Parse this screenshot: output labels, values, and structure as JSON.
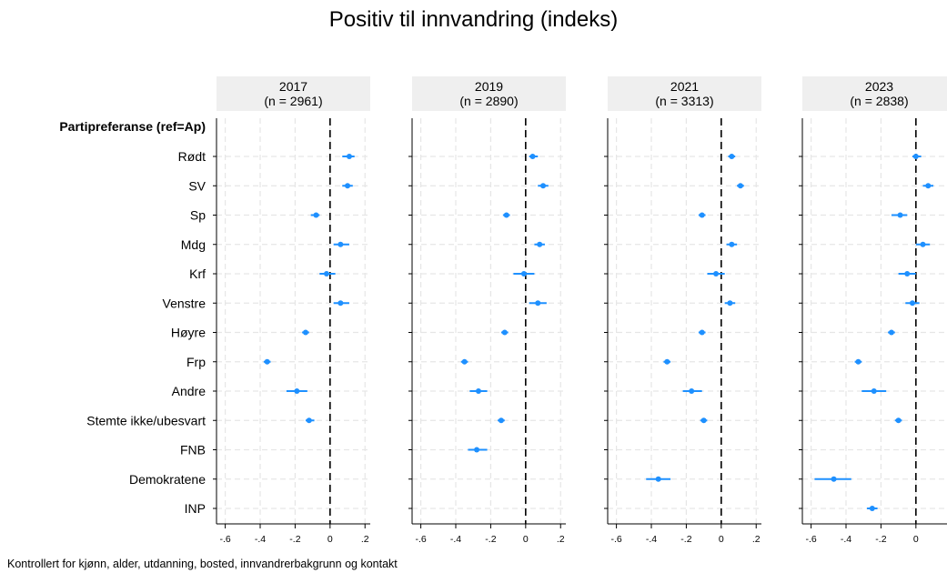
{
  "chart_data": {
    "type": "scatter",
    "title": "Positiv til innvandring (indeks)",
    "footnote": "Kontrollert for kjønn, alder, utdanning, bosted, innvandrerbakgrunn og kontakt",
    "group_header": "Partipreferanse (ref=Ap)",
    "categories": [
      "Rødt",
      "SV",
      "Sp",
      "Mdg",
      "Krf",
      "Venstre",
      "Høyre",
      "Frp",
      "Andre",
      "Stemte ikke/ubesvart",
      "FNB",
      "Demokratene",
      "INP"
    ],
    "xlim": [
      -0.65,
      0.23
    ],
    "xticks": [
      -0.6,
      -0.4,
      -0.2,
      0,
      0.2
    ],
    "xtick_labels": [
      "-.6",
      "-.4",
      "-.2",
      "0",
      ".2"
    ],
    "reference_line": 0,
    "grid": true,
    "marker_color": "#1E90FF",
    "header_bg": "#EFEFEF",
    "panels": [
      {
        "year": "2017",
        "n_label": "(n = 2961)",
        "estimates": [
          0.11,
          0.1,
          -0.08,
          0.06,
          -0.02,
          0.06,
          -0.14,
          -0.36,
          -0.19,
          -0.12,
          null,
          null,
          null
        ],
        "ci_low": [
          0.07,
          0.07,
          -0.11,
          0.02,
          -0.06,
          0.02,
          -0.16,
          -0.38,
          -0.25,
          -0.14,
          null,
          null,
          null
        ],
        "ci_high": [
          0.14,
          0.13,
          -0.06,
          0.11,
          0.03,
          0.11,
          -0.12,
          -0.34,
          -0.13,
          -0.09,
          null,
          null,
          null
        ]
      },
      {
        "year": "2019",
        "n_label": "(n = 2890)",
        "estimates": [
          0.04,
          0.1,
          -0.11,
          0.08,
          -0.01,
          0.07,
          -0.12,
          -0.35,
          -0.27,
          -0.14,
          -0.28,
          null,
          null
        ],
        "ci_low": [
          0.02,
          0.07,
          -0.13,
          0.05,
          -0.07,
          0.02,
          -0.14,
          -0.37,
          -0.32,
          -0.16,
          -0.33,
          null,
          null
        ],
        "ci_high": [
          0.07,
          0.13,
          -0.09,
          0.11,
          0.05,
          0.12,
          -0.1,
          -0.33,
          -0.22,
          -0.12,
          -0.22,
          null,
          null
        ]
      },
      {
        "year": "2021",
        "n_label": "(n = 3313)",
        "estimates": [
          0.06,
          0.11,
          -0.11,
          0.06,
          -0.03,
          0.05,
          -0.11,
          -0.31,
          -0.17,
          -0.1,
          null,
          -0.36,
          null
        ],
        "ci_low": [
          0.04,
          0.09,
          -0.13,
          0.03,
          -0.08,
          0.02,
          -0.13,
          -0.33,
          -0.22,
          -0.12,
          null,
          -0.43,
          null
        ],
        "ci_high": [
          0.08,
          0.13,
          -0.09,
          0.09,
          0.02,
          0.08,
          -0.09,
          -0.29,
          -0.11,
          -0.08,
          null,
          -0.29,
          null
        ]
      },
      {
        "year": "2023",
        "n_label": "(n = 2838)",
        "estimates": [
          0.0,
          0.07,
          -0.09,
          0.04,
          -0.05,
          -0.02,
          -0.14,
          -0.33,
          -0.24,
          -0.1,
          null,
          -0.47,
          -0.25
        ],
        "ci_low": [
          -0.02,
          0.04,
          -0.14,
          0.0,
          -0.1,
          -0.06,
          -0.16,
          -0.35,
          -0.31,
          -0.12,
          null,
          -0.58,
          -0.28
        ],
        "ci_high": [
          0.03,
          0.1,
          -0.05,
          0.08,
          0.0,
          0.02,
          -0.12,
          -0.31,
          -0.17,
          -0.08,
          null,
          -0.37,
          -0.22
        ]
      }
    ]
  }
}
